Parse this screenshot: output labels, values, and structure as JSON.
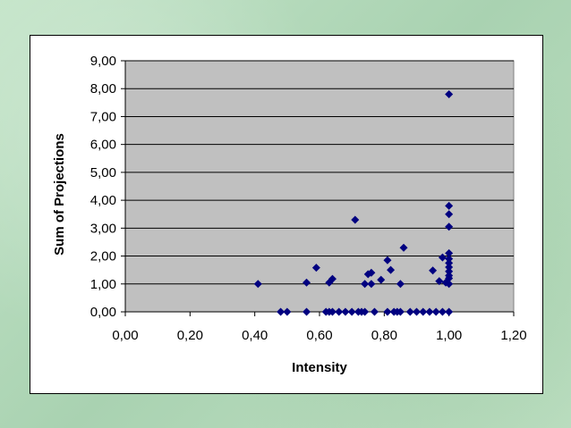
{
  "chart_data": {
    "type": "scatter",
    "xlabel": "Intensity",
    "ylabel": "Sum of Projections",
    "xlim": [
      0,
      1.2
    ],
    "ylim": [
      0,
      9
    ],
    "x_ticks": [
      "0,00",
      "0,20",
      "0,40",
      "0,60",
      "0,80",
      "1,00",
      "1,20"
    ],
    "y_ticks": [
      "0,00",
      "1,00",
      "2,00",
      "3,00",
      "4,00",
      "5,00",
      "6,00",
      "7,00",
      "8,00",
      "9,00"
    ],
    "grid": "horizontal",
    "plot_background": "#c0c0c0",
    "marker_color": "#000080",
    "marker_shape": "diamond",
    "legend": "none",
    "points": [
      [
        0.41,
        1.0
      ],
      [
        0.48,
        0.0
      ],
      [
        0.5,
        0.0
      ],
      [
        0.56,
        0.0
      ],
      [
        0.56,
        1.05
      ],
      [
        0.59,
        1.58
      ],
      [
        0.62,
        0.0
      ],
      [
        0.63,
        0.0
      ],
      [
        0.63,
        1.05
      ],
      [
        0.64,
        1.18
      ],
      [
        0.64,
        0.0
      ],
      [
        0.66,
        0.0
      ],
      [
        0.68,
        0.0
      ],
      [
        0.7,
        0.0
      ],
      [
        0.71,
        3.3
      ],
      [
        0.72,
        0.0
      ],
      [
        0.73,
        0.0
      ],
      [
        0.74,
        0.0
      ],
      [
        0.74,
        1.0
      ],
      [
        0.75,
        1.35
      ],
      [
        0.76,
        1.4
      ],
      [
        0.76,
        1.0
      ],
      [
        0.77,
        0.0
      ],
      [
        0.79,
        1.15
      ],
      [
        0.81,
        1.85
      ],
      [
        0.81,
        0.0
      ],
      [
        0.82,
        1.5
      ],
      [
        0.83,
        0.0
      ],
      [
        0.84,
        0.0
      ],
      [
        0.85,
        0.0
      ],
      [
        0.85,
        1.0
      ],
      [
        0.86,
        2.3
      ],
      [
        0.88,
        0.0
      ],
      [
        0.9,
        0.0
      ],
      [
        0.92,
        0.0
      ],
      [
        0.94,
        0.0
      ],
      [
        0.95,
        1.48
      ],
      [
        0.96,
        0.0
      ],
      [
        0.97,
        1.1
      ],
      [
        0.98,
        1.95
      ],
      [
        0.98,
        0.0
      ],
      [
        0.99,
        1.05
      ],
      [
        1.0,
        7.8
      ],
      [
        1.0,
        3.8
      ],
      [
        1.0,
        3.5
      ],
      [
        1.0,
        3.05
      ],
      [
        1.0,
        2.1
      ],
      [
        1.0,
        1.9
      ],
      [
        1.0,
        1.75
      ],
      [
        1.0,
        1.6
      ],
      [
        1.0,
        1.45
      ],
      [
        1.0,
        1.3
      ],
      [
        1.0,
        1.2
      ],
      [
        1.0,
        1.0
      ],
      [
        1.0,
        0.0
      ]
    ]
  }
}
